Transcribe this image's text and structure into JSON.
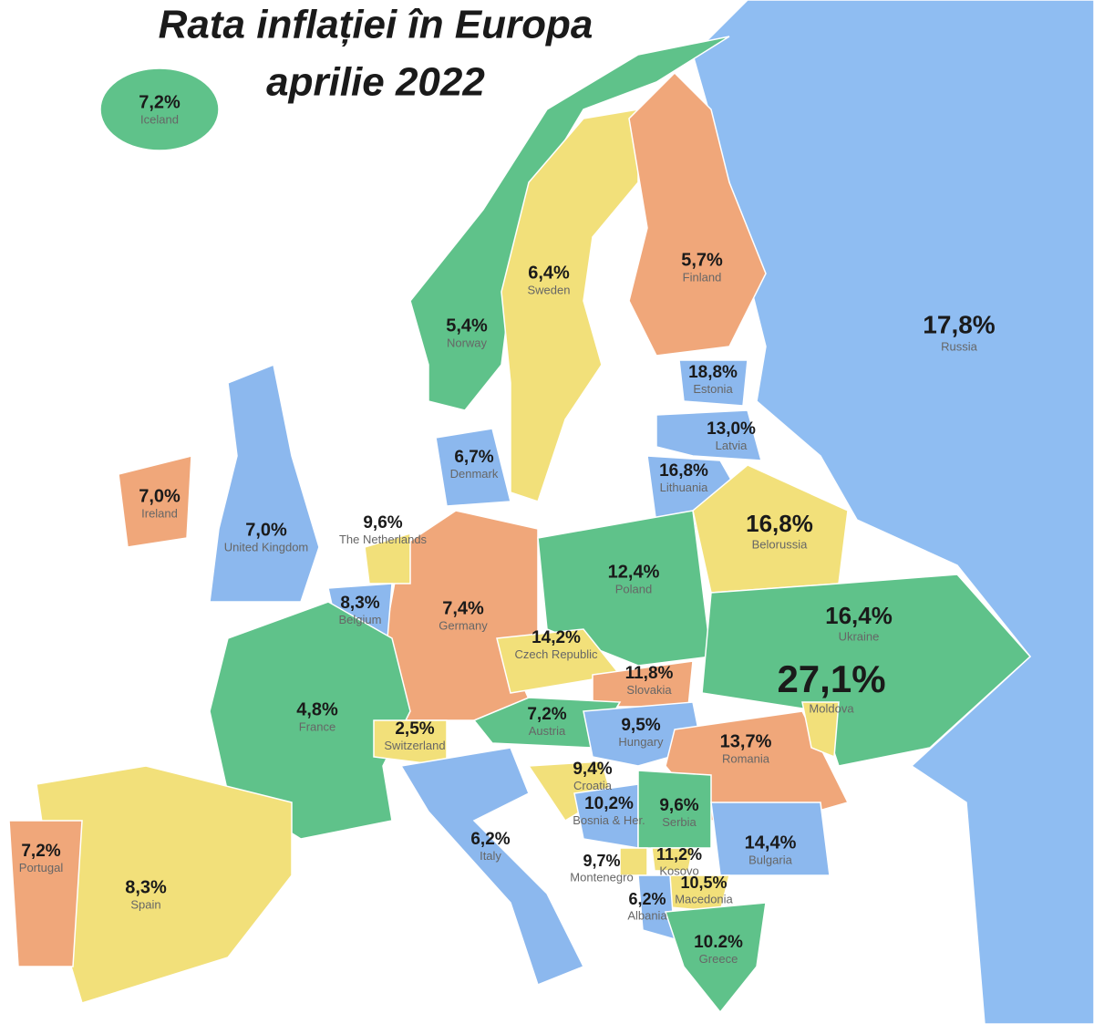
{
  "title": {
    "line1": "Rata inflației în Europa",
    "line2": "aprilie 2022"
  },
  "countries": [
    {
      "rate": "7,2%",
      "name": "Iceland"
    },
    {
      "rate": "6,4%",
      "name": "Sweden"
    },
    {
      "rate": "5,7%",
      "name": "Finland"
    },
    {
      "rate": "5,4%",
      "name": "Norway"
    },
    {
      "rate": "17,8%",
      "name": "Russia"
    },
    {
      "rate": "18,8%",
      "name": "Estonia"
    },
    {
      "rate": "13,0%",
      "name": "Latvia"
    },
    {
      "rate": "16,8%",
      "name": "Lithuania"
    },
    {
      "rate": "6,7%",
      "name": "Denmark"
    },
    {
      "rate": "7,0%",
      "name": "Ireland"
    },
    {
      "rate": "7,0%",
      "name": "United Kingdom"
    },
    {
      "rate": "9,6%",
      "name": "The Netherlands"
    },
    {
      "rate": "16,8%",
      "name": "Belorussia"
    },
    {
      "rate": "12,4%",
      "name": "Poland"
    },
    {
      "rate": "8,3%",
      "name": "Belgium"
    },
    {
      "rate": "7,4%",
      "name": "Germany"
    },
    {
      "rate": "16,4%",
      "name": "Ukraine"
    },
    {
      "rate": "14,2%",
      "name": "Czech Republic"
    },
    {
      "rate": "11,8%",
      "name": "Slovakia"
    },
    {
      "rate": "27,1%",
      "name": "Moldova"
    },
    {
      "rate": "4,8%",
      "name": "France"
    },
    {
      "rate": "2,5%",
      "name": "Switzerland"
    },
    {
      "rate": "7,2%",
      "name": "Austria"
    },
    {
      "rate": "9,5%",
      "name": "Hungary"
    },
    {
      "rate": "13,7%",
      "name": "Romania"
    },
    {
      "rate": "9,4%",
      "name": "Croatia"
    },
    {
      "rate": "10,2%",
      "name": "Bosnia & Her."
    },
    {
      "rate": "9,6%",
      "name": "Serbia"
    },
    {
      "rate": "6,2%",
      "name": "Italy"
    },
    {
      "rate": "14,4%",
      "name": "Bulgaria"
    },
    {
      "rate": "7,2%",
      "name": "Portugal"
    },
    {
      "rate": "8,3%",
      "name": "Spain"
    },
    {
      "rate": "9,7%",
      "name": "Montenegro"
    },
    {
      "rate": "11,2%",
      "name": "Kosovo"
    },
    {
      "rate": "10,5%",
      "name": "Macedonia"
    },
    {
      "rate": "6,2%",
      "name": "Albania"
    },
    {
      "rate": "10.2%",
      "name": "Greece"
    }
  ]
}
